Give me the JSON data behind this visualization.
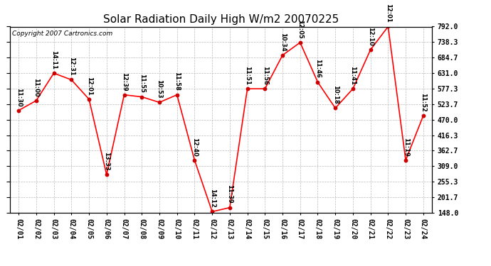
{
  "title": "Solar Radiation Daily High W/m2 20070225",
  "copyright": "Copyright 2007 Cartronics.com",
  "dates": [
    "02/01",
    "02/02",
    "02/03",
    "02/04",
    "02/05",
    "02/06",
    "02/07",
    "02/08",
    "02/09",
    "02/10",
    "02/11",
    "02/12",
    "02/13",
    "02/14",
    "02/15",
    "02/16",
    "02/17",
    "02/18",
    "02/19",
    "02/20",
    "02/21",
    "02/22",
    "02/23",
    "02/24"
  ],
  "values": [
    502,
    536,
    631,
    608,
    541,
    280,
    556,
    549,
    530,
    556,
    330,
    152,
    166,
    577,
    577,
    693,
    737,
    600,
    510,
    577,
    712,
    792,
    330,
    484
  ],
  "times": [
    "11:30",
    "11:00",
    "14:11",
    "12:31",
    "12:01",
    "13:33",
    "12:39",
    "11:55",
    "10:53",
    "11:58",
    "12:40",
    "14:12",
    "11:39",
    "11:51",
    "11:56",
    "10:34",
    "12:05",
    "11:46",
    "10:18",
    "11:41",
    "12:10",
    "12:01",
    "11:19",
    "11:52"
  ],
  "line_color": "#ff0000",
  "marker_color": "#cc0000",
  "grid_color": "#bbbbbb",
  "bg_color": "#ffffff",
  "ymin": 148.0,
  "ymax": 792.0,
  "yticks": [
    148.0,
    201.7,
    255.3,
    309.0,
    362.7,
    416.3,
    470.0,
    523.7,
    577.3,
    631.0,
    684.7,
    738.3,
    792.0
  ],
  "title_fontsize": 11,
  "label_fontsize": 6.0,
  "tick_fontsize": 7,
  "copyright_fontsize": 6.5
}
